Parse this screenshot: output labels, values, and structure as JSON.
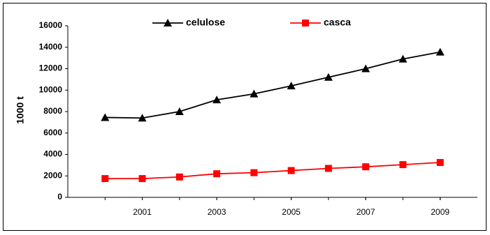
{
  "chart_data": {
    "type": "line",
    "y_label": "1000 t",
    "x": [
      2000,
      2001,
      2002,
      2003,
      2004,
      2005,
      2006,
      2007,
      2008,
      2009
    ],
    "xlim": [
      1999,
      2010
    ],
    "xticks": [
      2001,
      2003,
      2005,
      2007,
      2009
    ],
    "ylim": [
      0,
      16000
    ],
    "yticks": [
      0,
      2000,
      4000,
      6000,
      8000,
      10000,
      12000,
      14000,
      16000
    ],
    "grid": false,
    "series": [
      {
        "name": "celulose",
        "color": "#000000",
        "marker": "triangle",
        "values": [
          7450,
          7400,
          8000,
          9100,
          9650,
          10400,
          11200,
          12000,
          12900,
          13550
        ]
      },
      {
        "name": "casca",
        "color": "#ff0000",
        "marker": "square",
        "values": [
          1750,
          1750,
          1900,
          2200,
          2300,
          2500,
          2700,
          2850,
          3050,
          3250
        ]
      }
    ]
  }
}
